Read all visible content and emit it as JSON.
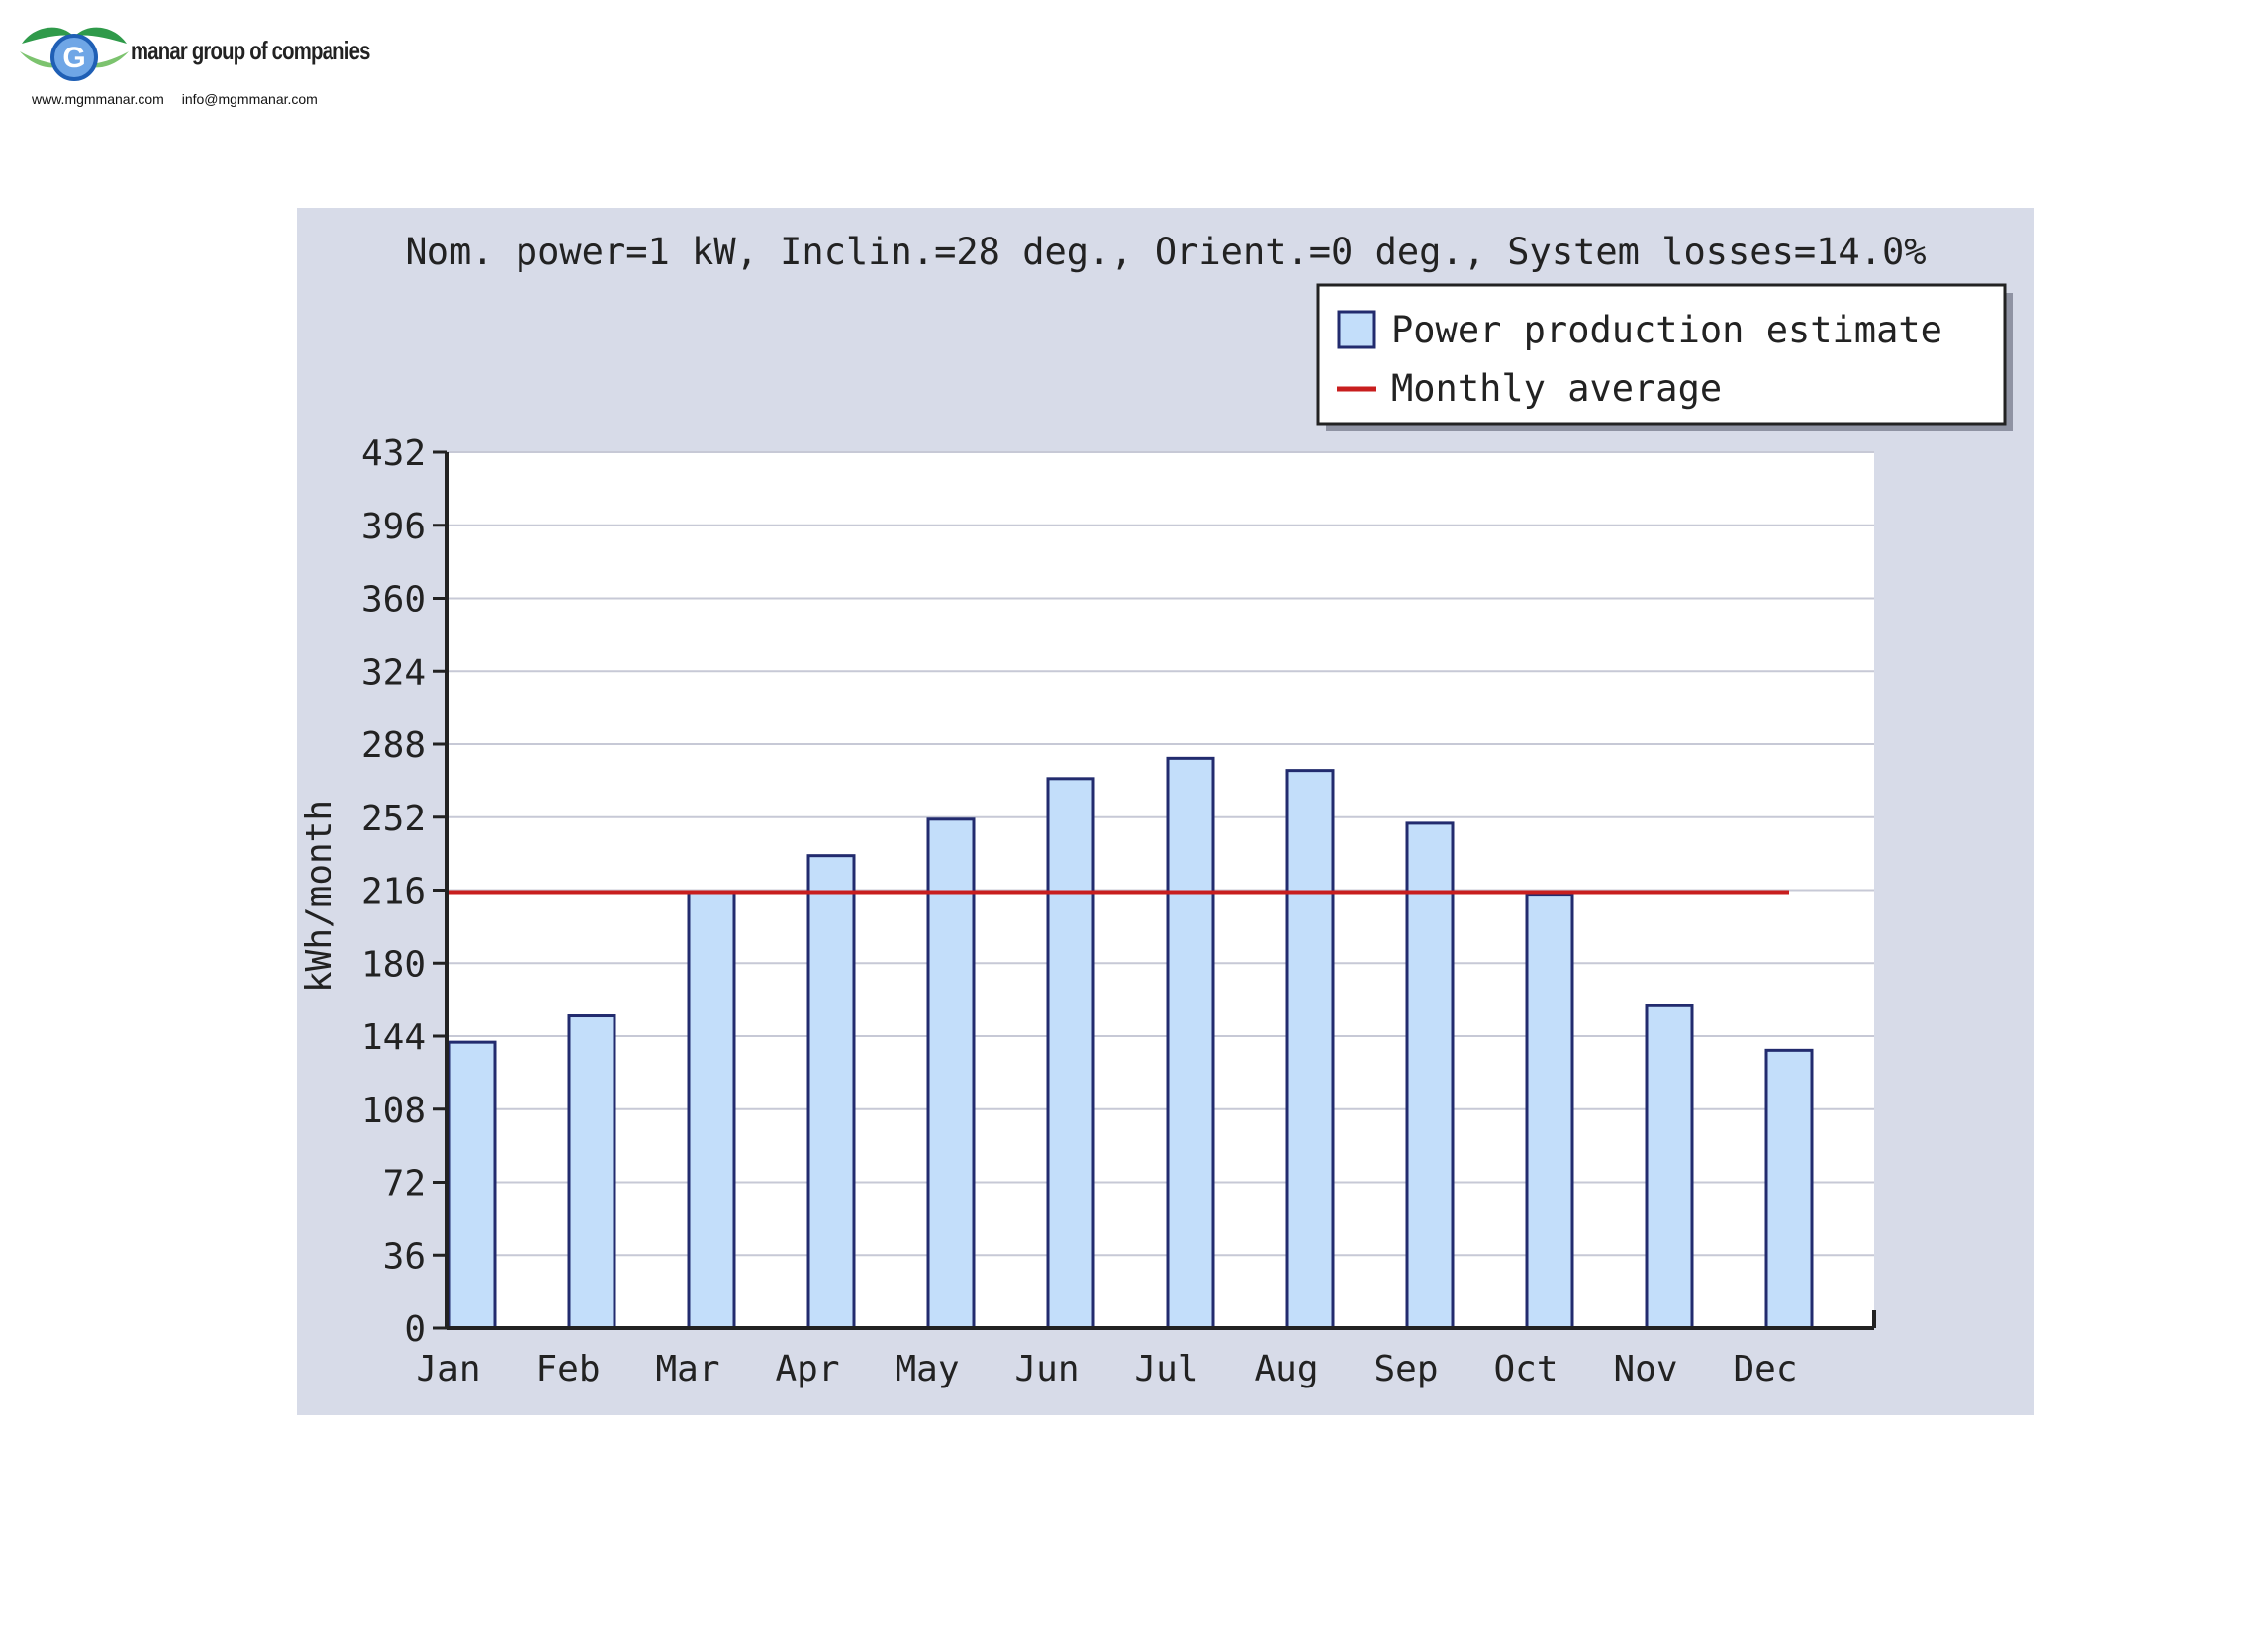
{
  "header": {
    "company_name": "manar group of companies",
    "logo_letter": "G",
    "website": "www.mgmmanar.com",
    "email": "info@mgmmanar.com",
    "logo_colors": {
      "leaf": "#2f9a4a",
      "leaf_light": "#7cc36e",
      "ring": "#1f5fb5",
      "ring_light": "#6fa6e6"
    }
  },
  "chart_data": {
    "type": "bar",
    "title": "Nom. power=1 kW, Inclin.=28 deg., Orient.=0 deg., System losses=14.0%",
    "xlabel": "",
    "ylabel": "kWh/month",
    "categories": [
      "Jan",
      "Feb",
      "Mar",
      "Apr",
      "May",
      "Jun",
      "Jul",
      "Aug",
      "Sep",
      "Oct",
      "Nov",
      "Dec"
    ],
    "series": [
      {
        "name": "Power production estimate",
        "values": [
          141,
          154,
          215,
          233,
          251,
          271,
          281,
          275,
          249,
          214,
          159,
          137
        ]
      }
    ],
    "reference_lines": [
      {
        "name": "Monthly average",
        "value": 215
      }
    ],
    "yticks": [
      0,
      36,
      72,
      108,
      144,
      180,
      216,
      252,
      288,
      324,
      360,
      396,
      432
    ],
    "ylim": [
      0,
      432
    ],
    "grid": true,
    "legend_position": "top-right",
    "colors": {
      "bar_fill": "#c3defa",
      "bar_stroke": "#222b6e",
      "average_line": "#c81e1e",
      "panel_background": "#d7dbe8",
      "plot_background": "#ffffff",
      "gridline": "#c7c9d6"
    }
  }
}
